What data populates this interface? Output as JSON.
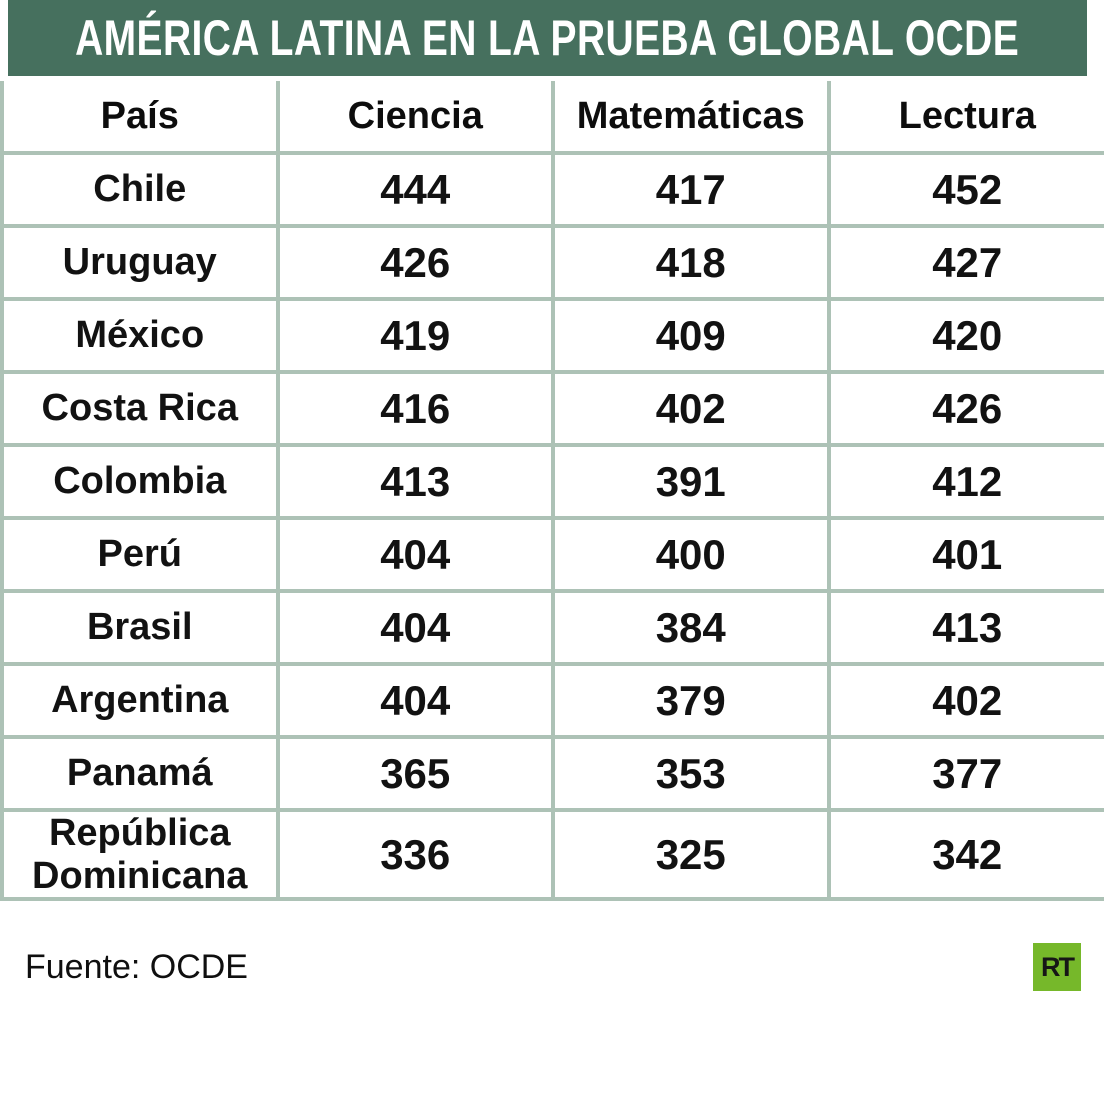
{
  "chart_data": {
    "type": "table",
    "title": "AMÉRICA LATINA EN LA PRUEBA GLOBAL OCDE",
    "columns": [
      "País",
      "Ciencia",
      "Matemáticas",
      "Lectura"
    ],
    "rows": [
      [
        "Chile",
        444,
        417,
        452
      ],
      [
        "Uruguay",
        426,
        418,
        427
      ],
      [
        "México",
        419,
        409,
        420
      ],
      [
        "Costa Rica",
        416,
        402,
        426
      ],
      [
        "Colombia",
        413,
        391,
        412
      ],
      [
        "Perú",
        404,
        400,
        401
      ],
      [
        "Brasil",
        404,
        384,
        413
      ],
      [
        "Argentina",
        404,
        379,
        402
      ],
      [
        "Panamá",
        365,
        353,
        377
      ],
      [
        "República Dominicana",
        336,
        325,
        342
      ]
    ]
  },
  "footer": {
    "source": "Fuente: OCDE",
    "logo_text": "RT"
  },
  "colors": {
    "banner": "#46705E",
    "border": "#ADC2B6",
    "logo": "#76B82A",
    "text": "#121212"
  }
}
